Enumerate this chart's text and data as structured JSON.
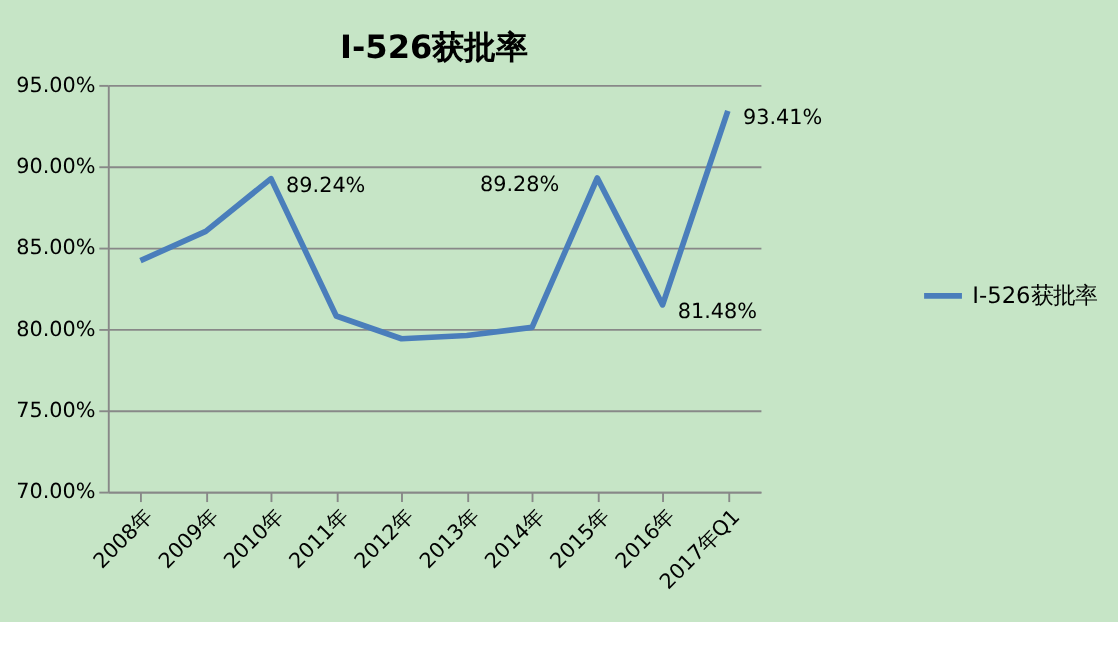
{
  "chart_data": {
    "type": "line",
    "title": "I-526获批率",
    "categories": [
      "2008年",
      "2009年",
      "2010年",
      "2011年",
      "2012年",
      "2013年",
      "2014年",
      "2015年",
      "2016年",
      "2017年Q1"
    ],
    "series": [
      {
        "name": "I-526获批率",
        "color": "#4a7ebb",
        "values": [
          84.2,
          86.0,
          89.24,
          80.8,
          79.4,
          79.6,
          80.1,
          89.28,
          81.48,
          93.41
        ],
        "value_labels": [
          null,
          null,
          "89.24%",
          null,
          null,
          null,
          null,
          "89.28%",
          "81.48%",
          "93.41%"
        ]
      }
    ],
    "ylim": [
      70,
      95
    ],
    "yticks": [
      {
        "value": 70,
        "label": "70.00%"
      },
      {
        "value": 75,
        "label": "75.00%"
      },
      {
        "value": 80,
        "label": "80.00%"
      },
      {
        "value": 85,
        "label": "85.00%"
      },
      {
        "value": 90,
        "label": "90.00%"
      },
      {
        "value": 95,
        "label": "95.00%"
      }
    ],
    "grid": "y",
    "legend": "right",
    "marker": "none",
    "line_style": "solid"
  }
}
